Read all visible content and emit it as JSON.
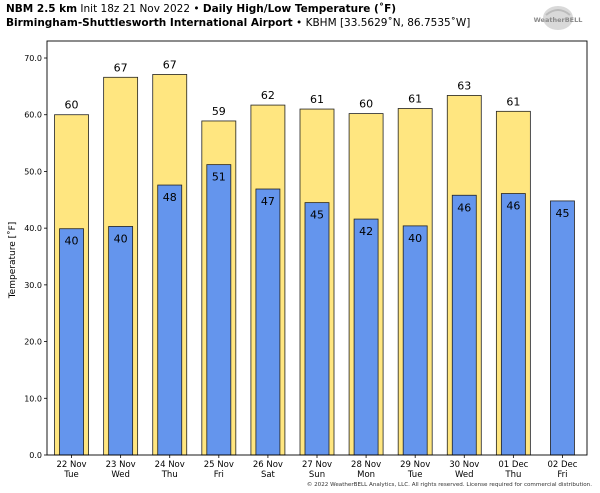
{
  "header": {
    "model": "NBM 2.5 km",
    "init": "Init 18z 21 Nov 2022",
    "product": "Daily High/Low Temperature (˚F)",
    "station": "Birmingham-Shuttlesworth International Airport",
    "location": "KBHM [33.5629˚N, 86.7535˚W]",
    "separator": "•"
  },
  "logo": {
    "text": "WeatherBELL"
  },
  "footer": "© 2022 WeatherBELL Analytics, LLC. All rights reserved. License required for commercial distribution.",
  "chart_data": {
    "type": "bar",
    "ylabel": "Temperature [˚F]",
    "ylim": [
      0,
      73
    ],
    "yticks": [
      "0.0",
      "10.0",
      "20.0",
      "30.0",
      "40.0",
      "50.0",
      "60.0",
      "70.0"
    ],
    "ytick_values": [
      0,
      10,
      20,
      30,
      40,
      50,
      60,
      70
    ],
    "categories": [
      {
        "date": "22 Nov",
        "day": "Tue"
      },
      {
        "date": "23 Nov",
        "day": "Wed"
      },
      {
        "date": "24 Nov",
        "day": "Thu"
      },
      {
        "date": "25 Nov",
        "day": "Fri"
      },
      {
        "date": "26 Nov",
        "day": "Sat"
      },
      {
        "date": "27 Nov",
        "day": "Sun"
      },
      {
        "date": "28 Nov",
        "day": "Mon"
      },
      {
        "date": "29 Nov",
        "day": "Tue"
      },
      {
        "date": "30 Nov",
        "day": "Wed"
      },
      {
        "date": "01 Dec",
        "day": "Thu"
      },
      {
        "date": "02 Dec",
        "day": "Fri"
      }
    ],
    "series": [
      {
        "color": "#ffe680",
        "values": [
          60.0,
          66.6,
          67.1,
          58.9,
          61.7,
          61.0,
          60.2,
          61.1,
          63.4,
          60.6,
          null
        ],
        "labels": [
          "60",
          "67",
          "67",
          "59",
          "62",
          "61",
          "60",
          "61",
          "63",
          "61",
          null
        ]
      },
      {
        "color": "#6495ed",
        "values": [
          39.9,
          40.3,
          47.6,
          51.2,
          46.9,
          44.5,
          41.6,
          40.4,
          45.8,
          46.1,
          44.8
        ],
        "labels": [
          "40",
          "40",
          "48",
          "51",
          "47",
          "45",
          "42",
          "40",
          "46",
          "46",
          "45"
        ]
      }
    ],
    "grid": false,
    "legend": "none"
  }
}
